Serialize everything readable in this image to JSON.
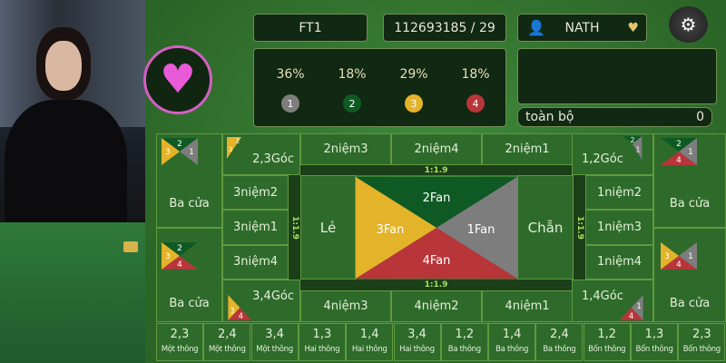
{
  "colors": {
    "fan1": "#7d7d7d",
    "fan2": "#0f5a24",
    "fan3": "#e3b32a",
    "fan4": "#b8353a",
    "accent": "#d45fc4"
  },
  "header": {
    "table_id": "FT1",
    "round": "112693185 / 29",
    "username": "NATH",
    "user_icon": "user-icon",
    "settings_icon": "settings-coins-icon",
    "favorite_icon": "heart-icon"
  },
  "stats": [
    {
      "percent": "36%",
      "number": "1"
    },
    {
      "percent": "18%",
      "number": "2"
    },
    {
      "percent": "29%",
      "number": "3"
    },
    {
      "percent": "18%",
      "number": "4"
    }
  ],
  "total": {
    "label": "toàn bộ",
    "value": "0"
  },
  "board": {
    "ba_cua": "Ba cửa",
    "goc": {
      "g23": "2,3Góc",
      "g12": "1,2Góc",
      "g34": "3,4Góc",
      "g14": "1,4Góc"
    },
    "top": [
      "2niệm3",
      "2niệm4",
      "2niệm1"
    ],
    "left": [
      "3niệm2",
      "3niệm1",
      "3niệm4"
    ],
    "right": [
      "1niệm2",
      "1niệm3",
      "1niệm4"
    ],
    "bottom": [
      "4niệm3",
      "4niệm2",
      "4niệm1"
    ],
    "odd": "Lẻ",
    "even": "Chẵn",
    "fan": {
      "f1": "1Fan",
      "f2": "2Fan",
      "f3": "3Fan",
      "f4": "4Fan"
    },
    "odds": "1:1.9",
    "nums": {
      "n1": "1",
      "n2": "2",
      "n3": "3",
      "n4": "4"
    }
  },
  "strip": [
    {
      "n": "2,3",
      "t": "Một thông"
    },
    {
      "n": "2,4",
      "t": "Một thông"
    },
    {
      "n": "3,4",
      "t": "Một thông"
    },
    {
      "n": "1,3",
      "t": "Hai thông"
    },
    {
      "n": "1,4",
      "t": "Hai thông"
    },
    {
      "n": "3,4",
      "t": "Hai thông"
    },
    {
      "n": "1,2",
      "t": "Ba thông"
    },
    {
      "n": "1,4",
      "t": "Ba thông"
    },
    {
      "n": "2,4",
      "t": "Ba thông"
    },
    {
      "n": "1,2",
      "t": "Bốn thông"
    },
    {
      "n": "1,3",
      "t": "Bốn thông"
    },
    {
      "n": "2,3",
      "t": "Bốn thông"
    }
  ]
}
